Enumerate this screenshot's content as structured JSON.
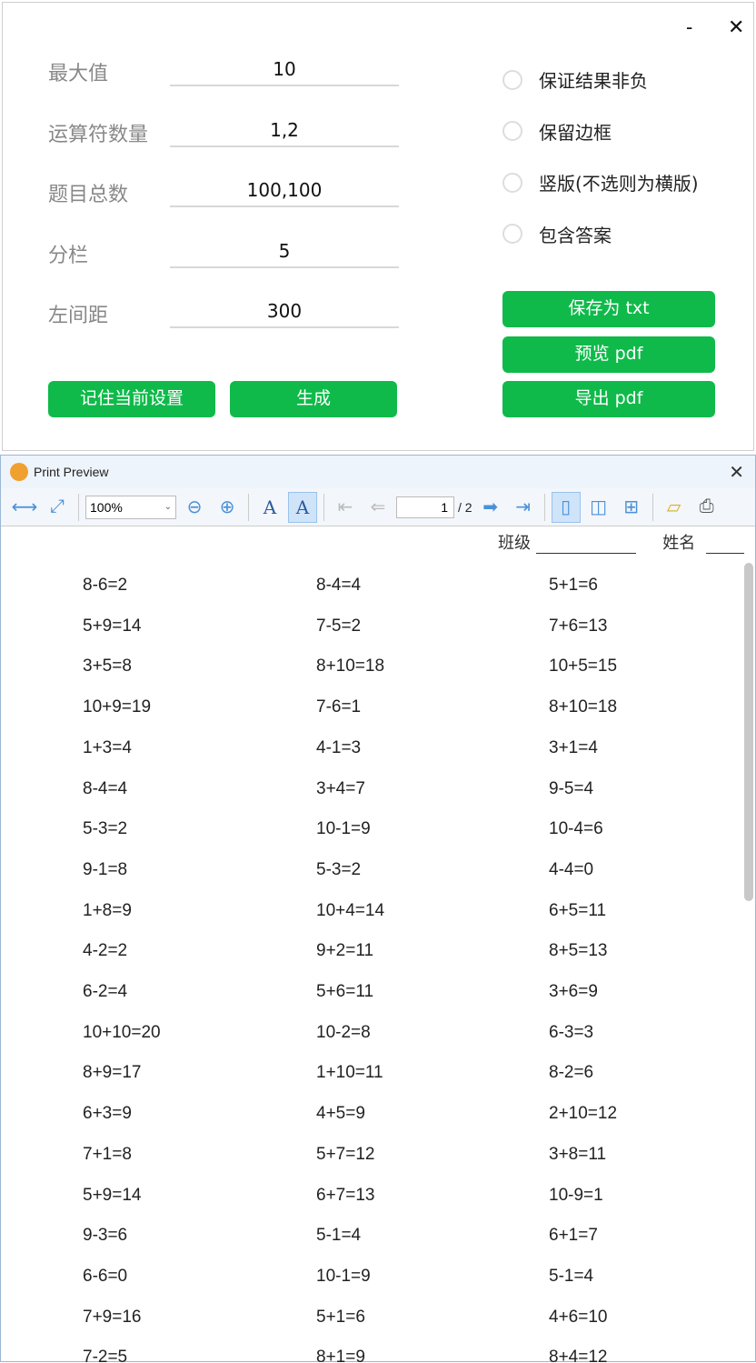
{
  "window": {
    "minimize": "-",
    "close": "✕"
  },
  "form": {
    "fields": [
      {
        "label": "最大值",
        "value": "10"
      },
      {
        "label": "运算符数量",
        "value": "1,2"
      },
      {
        "label": "题目总数",
        "value": "100,100"
      },
      {
        "label": "分栏",
        "value": "5"
      },
      {
        "label": "左间距",
        "value": "300"
      }
    ],
    "options": [
      {
        "label": "保证结果非负",
        "checked": false
      },
      {
        "label": "保留边框",
        "checked": false
      },
      {
        "label": "竖版(不选则为横版)",
        "checked": false
      },
      {
        "label": "包含答案",
        "checked": false
      }
    ],
    "buttons": {
      "remember": "记住当前设置",
      "generate": "生成",
      "save_txt": "保存为 txt",
      "preview_pdf": "预览 pdf",
      "export_pdf": "导出 pdf"
    },
    "accent": "#0fba4a"
  },
  "preview": {
    "title": "Print Preview",
    "close": "✕",
    "zoom": "100%",
    "page": "1",
    "total": "/ 2",
    "header": {
      "class_label": "班级",
      "name_label": "姓名"
    },
    "problems": [
      [
        "8-6=2",
        "8-4=4",
        "5+1=6"
      ],
      [
        "5+9=14",
        "7-5=2",
        "7+6=13"
      ],
      [
        "3+5=8",
        "8+10=18",
        "10+5=15"
      ],
      [
        "10+9=19",
        "7-6=1",
        "8+10=18"
      ],
      [
        "1+3=4",
        "4-1=3",
        "3+1=4"
      ],
      [
        "8-4=4",
        "3+4=7",
        "9-5=4"
      ],
      [
        "5-3=2",
        "10-1=9",
        "10-4=6"
      ],
      [
        "9-1=8",
        "5-3=2",
        "4-4=0"
      ],
      [
        "1+8=9",
        "10+4=14",
        "6+5=11"
      ],
      [
        "4-2=2",
        "9+2=11",
        "8+5=13"
      ],
      [
        "6-2=4",
        "5+6=11",
        "3+6=9"
      ],
      [
        "10+10=20",
        "10-2=8",
        "6-3=3"
      ],
      [
        "8+9=17",
        "1+10=11",
        "8-2=6"
      ],
      [
        "6+3=9",
        "4+5=9",
        "2+10=12"
      ],
      [
        "7+1=8",
        "5+7=12",
        "3+8=11"
      ],
      [
        "5+9=14",
        "6+7=13",
        "10-9=1"
      ],
      [
        "9-3=6",
        "5-1=4",
        "6+1=7"
      ],
      [
        "6-6=0",
        "10-1=9",
        "5-1=4"
      ],
      [
        "7+9=16",
        "5+1=6",
        "4+6=10"
      ],
      [
        "7-2=5",
        "8+1=9",
        "8+4=12"
      ]
    ]
  }
}
